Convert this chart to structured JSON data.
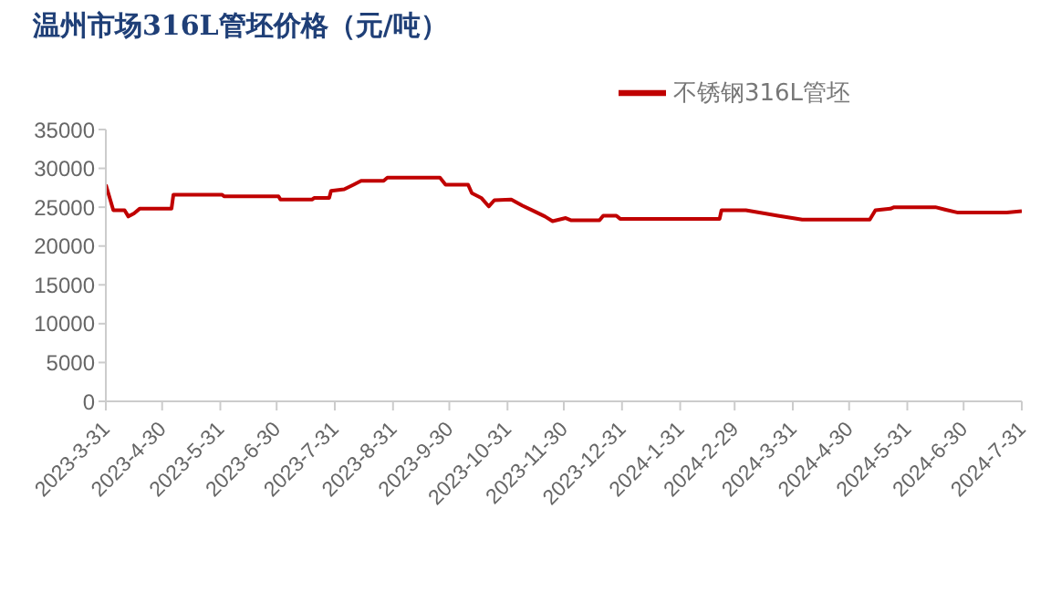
{
  "chart_data": {
    "type": "line",
    "title": "温州市场316L管坯价格（元/吨）",
    "x": [
      "2023-03-31",
      "2023-04-04",
      "2023-04-10",
      "2023-04-12",
      "2023-04-15",
      "2023-04-18",
      "2023-05-05",
      "2023-05-06",
      "2023-06-01",
      "2023-06-02",
      "2023-07-01",
      "2023-07-02",
      "2023-07-19",
      "2023-07-20",
      "2023-07-28",
      "2023-07-29",
      "2023-08-05",
      "2023-08-10",
      "2023-08-14",
      "2023-08-26",
      "2023-08-28",
      "2023-09-25",
      "2023-09-28",
      "2023-10-10",
      "2023-10-12",
      "2023-10-17",
      "2023-10-21",
      "2023-10-24",
      "2023-11-02",
      "2023-11-08",
      "2023-11-14",
      "2023-11-20",
      "2023-11-24",
      "2023-12-01",
      "2023-12-04",
      "2023-12-19",
      "2023-12-21",
      "2023-12-28",
      "2023-12-30",
      "2024-02-21",
      "2024-02-22",
      "2024-03-06",
      "2024-03-16",
      "2024-03-23",
      "2024-04-05",
      "2024-05-11",
      "2024-05-14",
      "2024-05-22",
      "2024-05-24",
      "2024-06-15",
      "2024-06-20",
      "2024-06-27",
      "2024-07-23",
      "2024-07-31"
    ],
    "series": [
      {
        "name": "不锈钢316L管坯",
        "color": "#c00000",
        "values": [
          27900,
          24600,
          24600,
          23800,
          24200,
          24800,
          24800,
          26600,
          26600,
          26400,
          26400,
          26000,
          26000,
          26200,
          26200,
          27100,
          27300,
          27900,
          28400,
          28400,
          28800,
          28800,
          27900,
          27900,
          26800,
          26200,
          25100,
          25900,
          26000,
          25200,
          24500,
          23800,
          23200,
          23600,
          23300,
          23300,
          23900,
          23900,
          23500,
          23500,
          24600,
          24600,
          24200,
          23900,
          23400,
          23400,
          24600,
          24800,
          25000,
          25000,
          24700,
          24300,
          24300,
          24500
        ]
      }
    ],
    "xlim": [
      "2023-03-31",
      "2024-07-31"
    ],
    "xticks": [
      {
        "value": "2023-03-31",
        "label": "2023-3-31"
      },
      {
        "value": "2023-04-30",
        "label": "2023-4-30"
      },
      {
        "value": "2023-05-31",
        "label": "2023-5-31"
      },
      {
        "value": "2023-06-30",
        "label": "2023-6-30"
      },
      {
        "value": "2023-07-31",
        "label": "2023-7-31"
      },
      {
        "value": "2023-08-31",
        "label": "2023-8-31"
      },
      {
        "value": "2023-09-30",
        "label": "2023-9-30"
      },
      {
        "value": "2023-10-31",
        "label": "2023-10-31"
      },
      {
        "value": "2023-11-30",
        "label": "2023-11-30"
      },
      {
        "value": "2023-12-31",
        "label": "2023-12-31"
      },
      {
        "value": "2024-01-31",
        "label": "2024-1-31"
      },
      {
        "value": "2024-02-29",
        "label": "2024-2-29"
      },
      {
        "value": "2024-03-31",
        "label": "2024-3-31"
      },
      {
        "value": "2024-04-30",
        "label": "2024-4-30"
      },
      {
        "value": "2024-05-31",
        "label": "2024-5-31"
      },
      {
        "value": "2024-06-30",
        "label": "2024-6-30"
      },
      {
        "value": "2024-07-31",
        "label": "2024-7-31"
      }
    ],
    "ylim": [
      0,
      35000
    ],
    "yticks": [
      0,
      5000,
      10000,
      15000,
      20000,
      25000,
      30000,
      35000
    ],
    "legend": "top right",
    "grid": false,
    "marker": "none",
    "line_style": "solid"
  }
}
